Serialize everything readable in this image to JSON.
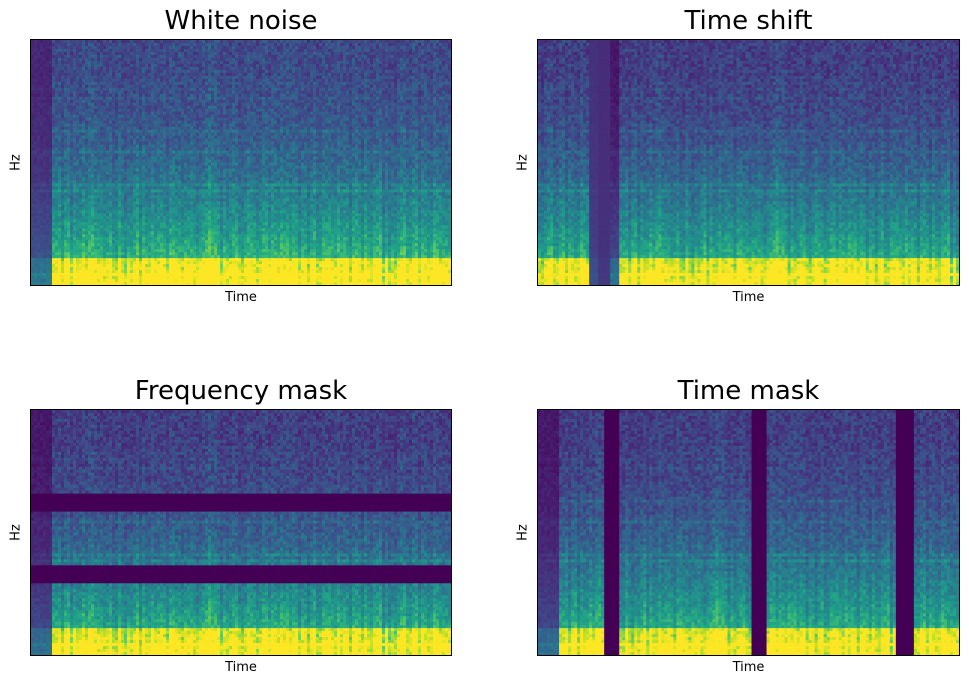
{
  "chart_data": [
    {
      "type": "heatmap",
      "title": "White noise",
      "xlabel": "Time",
      "ylabel": "Hz",
      "augmentation": "white-noise",
      "colormap": "viridis"
    },
    {
      "type": "heatmap",
      "title": "Time shift",
      "xlabel": "Time",
      "ylabel": "Hz",
      "augmentation": "time-shift",
      "colormap": "viridis"
    },
    {
      "type": "heatmap",
      "title": "Frequency mask",
      "xlabel": "Time",
      "ylabel": "Hz",
      "augmentation": "frequency-mask",
      "colormap": "viridis"
    },
    {
      "type": "heatmap",
      "title": "Time mask",
      "xlabel": "Time",
      "ylabel": "Hz",
      "augmentation": "time-mask",
      "colormap": "viridis"
    }
  ]
}
